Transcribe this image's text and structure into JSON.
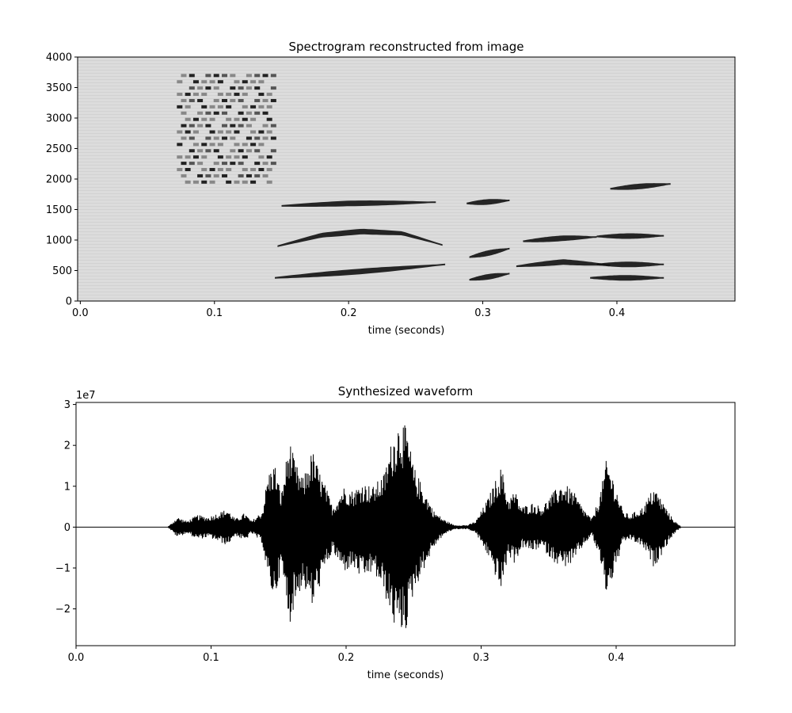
{
  "chart_data": [
    {
      "type": "heatmap",
      "title": "Spectrogram reconstructed from image",
      "xlabel": "time (seconds)",
      "ylabel": "",
      "xlim": [
        -0.002,
        0.488
      ],
      "ylim": [
        0,
        4000
      ],
      "xticks": [
        0.0,
        0.1,
        0.2,
        0.3,
        0.4
      ],
      "xtick_labels": [
        "0.0",
        "0.1",
        "0.2",
        "0.3",
        "0.4"
      ],
      "yticks": [
        0,
        500,
        1000,
        1500,
        2000,
        2500,
        3000,
        3500,
        4000
      ],
      "ytick_labels": [
        "0",
        "500",
        "1000",
        "1500",
        "2000",
        "2500",
        "3000",
        "3500",
        "4000"
      ],
      "background_color": "#dcdcdc",
      "mark_color": "#111111",
      "formant_tracks": [
        {
          "t": [
            0.145,
            0.2,
            0.24,
            0.272
          ],
          "f": [
            380,
            470,
            540,
            600
          ]
        },
        {
          "t": [
            0.147,
            0.18,
            0.21,
            0.24,
            0.27
          ],
          "f": [
            900,
            1080,
            1140,
            1110,
            920
          ]
        },
        {
          "t": [
            0.15,
            0.2,
            0.265
          ],
          "f": [
            1560,
            1600,
            1620
          ]
        },
        {
          "t": [
            0.288,
            0.32
          ],
          "f": [
            1600,
            1650
          ]
        },
        {
          "t": [
            0.325,
            0.36,
            0.395
          ],
          "f": [
            570,
            640,
            590
          ]
        },
        {
          "t": [
            0.33,
            0.36,
            0.385
          ],
          "f": [
            980,
            1030,
            1050
          ]
        },
        {
          "t": [
            0.385,
            0.435
          ],
          "f": [
            600,
            600
          ]
        },
        {
          "t": [
            0.385,
            0.435
          ],
          "f": [
            1060,
            1070
          ]
        },
        {
          "t": [
            0.38,
            0.435
          ],
          "f": [
            380,
            380
          ]
        },
        {
          "t": [
            0.395,
            0.44
          ],
          "f": [
            1840,
            1920
          ]
        },
        {
          "t": [
            0.29,
            0.32
          ],
          "f": [
            720,
            860
          ]
        },
        {
          "t": [
            0.29,
            0.32
          ],
          "f": [
            350,
            450
          ]
        }
      ],
      "noise_patch": {
        "t": [
          0.072,
          0.145
        ],
        "f": [
          1950,
          3800
        ]
      }
    },
    {
      "type": "line",
      "title": "Synthesized waveform",
      "xlabel": "time (seconds)",
      "ylabel": "",
      "offset_text": "1e7",
      "xlim": [
        0.0,
        0.488
      ],
      "ylim": [
        -2.9,
        3.05
      ],
      "y_scale": 10000000,
      "xticks": [
        0.0,
        0.1,
        0.2,
        0.3,
        0.4
      ],
      "xtick_labels": [
        "0.0",
        "0.1",
        "0.2",
        "0.3",
        "0.4"
      ],
      "yticks": [
        -2,
        -1,
        0,
        1,
        2,
        3
      ],
      "ytick_labels": [
        "−2",
        "−1",
        "0",
        "1",
        "2",
        "3"
      ],
      "line_color": "#000000",
      "envelope": {
        "t": [
          0.0,
          0.068,
          0.075,
          0.082,
          0.09,
          0.098,
          0.105,
          0.112,
          0.118,
          0.125,
          0.13,
          0.138,
          0.142,
          0.147,
          0.152,
          0.158,
          0.162,
          0.168,
          0.175,
          0.18,
          0.185,
          0.19,
          0.198,
          0.205,
          0.212,
          0.22,
          0.228,
          0.235,
          0.24,
          0.245,
          0.25,
          0.258,
          0.265,
          0.272,
          0.28,
          0.29,
          0.296,
          0.305,
          0.315,
          0.32,
          0.325,
          0.33,
          0.338,
          0.345,
          0.352,
          0.36,
          0.368,
          0.375,
          0.382,
          0.388,
          0.393,
          0.398,
          0.405,
          0.41,
          0.415,
          0.42,
          0.428,
          0.435,
          0.44,
          0.445,
          0.448,
          0.488
        ],
        "pos": [
          0.0,
          0.0,
          0.25,
          0.15,
          0.3,
          0.25,
          0.35,
          0.45,
          0.2,
          0.35,
          0.15,
          0.4,
          1.3,
          1.6,
          0.8,
          2.2,
          1.6,
          1.2,
          1.9,
          1.4,
          1.0,
          0.5,
          1.0,
          0.9,
          1.1,
          1.0,
          1.3,
          2.3,
          2.7,
          2.4,
          1.5,
          0.9,
          0.4,
          0.2,
          0.05,
          0.05,
          0.15,
          0.7,
          1.5,
          0.7,
          0.9,
          0.5,
          0.6,
          0.5,
          0.8,
          1.1,
          0.9,
          0.5,
          0.2,
          0.8,
          1.7,
          1.2,
          0.4,
          0.3,
          0.4,
          0.5,
          1.0,
          0.6,
          0.3,
          0.1,
          0.0,
          0.0
        ],
        "neg": [
          0.0,
          0.0,
          -0.25,
          -0.15,
          -0.3,
          -0.25,
          -0.35,
          -0.45,
          -0.2,
          -0.35,
          -0.15,
          -0.4,
          -1.3,
          -1.8,
          -1.0,
          -2.4,
          -1.9,
          -1.4,
          -2.0,
          -1.5,
          -1.0,
          -0.6,
          -1.1,
          -1.0,
          -1.3,
          -1.1,
          -1.6,
          -2.4,
          -2.6,
          -2.5,
          -1.6,
          -1.0,
          -0.5,
          -0.2,
          -0.05,
          -0.05,
          -0.15,
          -0.7,
          -1.6,
          -0.7,
          -0.9,
          -0.5,
          -0.6,
          -0.5,
          -0.8,
          -1.0,
          -0.9,
          -0.5,
          -0.2,
          -0.8,
          -1.7,
          -1.2,
          -0.4,
          -0.3,
          -0.4,
          -0.5,
          -1.0,
          -0.6,
          -0.3,
          -0.1,
          0.0,
          0.0
        ]
      }
    }
  ]
}
